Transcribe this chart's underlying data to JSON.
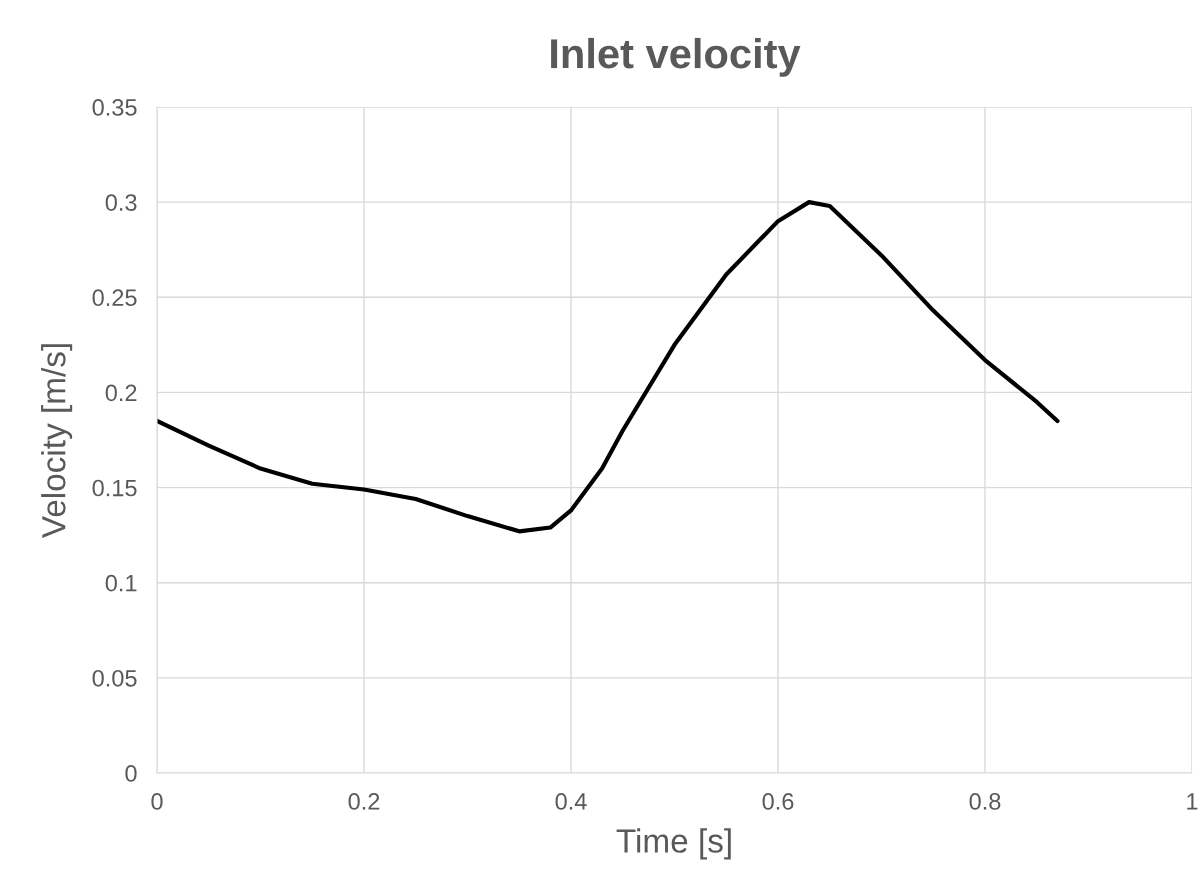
{
  "chart_data": {
    "type": "line",
    "title": "Inlet velocity",
    "xlabel": "Time [s]",
    "ylabel": "Velocity [m/s]",
    "x": [
      0,
      0.05,
      0.1,
      0.15,
      0.2,
      0.25,
      0.3,
      0.35,
      0.38,
      0.4,
      0.43,
      0.45,
      0.5,
      0.55,
      0.6,
      0.63,
      0.65,
      0.7,
      0.75,
      0.8,
      0.85,
      0.87
    ],
    "series": [
      {
        "color": "#000000",
        "values": [
          0.185,
          0.172,
          0.16,
          0.152,
          0.149,
          0.144,
          0.135,
          0.127,
          0.129,
          0.138,
          0.16,
          0.18,
          0.225,
          0.262,
          0.29,
          0.3,
          0.298,
          0.272,
          0.243,
          0.217,
          0.195,
          0.185
        ]
      }
    ],
    "xlim": [
      0,
      1
    ],
    "ylim": [
      0,
      0.35
    ],
    "xticks": [
      0,
      0.2,
      0.4,
      0.6,
      0.8,
      1
    ],
    "yticks": [
      0,
      0.05,
      0.1,
      0.15,
      0.2,
      0.25,
      0.3,
      0.35
    ],
    "grid": true,
    "marker": "none",
    "line_style": "solid"
  }
}
